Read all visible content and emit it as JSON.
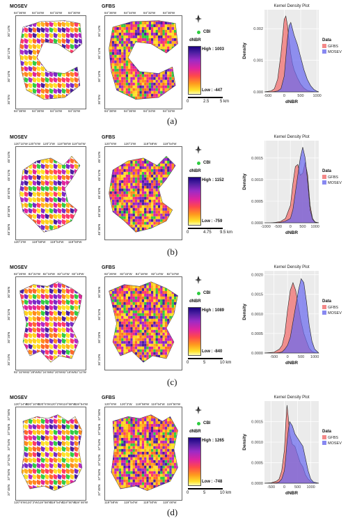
{
  "panels": [
    {
      "caption": "(a)",
      "map_left_title": "MOSEV",
      "map_right_title": "GFBS",
      "left_lon_ticks_bottom": [
        "84°38'W",
        "84°36'W",
        "84°34'W",
        "84°32'W"
      ],
      "left_lon_ticks_top": [
        "84°36'W",
        "84°34'W",
        "84°32'W",
        "84°30'W"
      ],
      "left_lat_ticks_left": [
        "30°14'N",
        "30°12'N",
        "30°10'N",
        "30°8'N"
      ],
      "right_lon_ticks_bottom": [
        "84°38'W",
        "84°36'W",
        "84°34'W",
        "84°32'W"
      ],
      "right_lon_ticks_top": [
        "84°36'W",
        "84°34'W",
        "84°32'W",
        "84°30'W"
      ],
      "right_lat_ticks_left": [
        "30°14'N",
        "30°12'N",
        "30°10'N",
        "30°8'N"
      ],
      "legend": {
        "cbi": "CBI",
        "dnbr": "dNBR",
        "high": "High : 1003",
        "low": "Low : -447",
        "scale": [
          "0",
          "2.5",
          "5 km"
        ]
      },
      "kde": {
        "title": "Kernel Density Plot",
        "xlabel": "dNBR",
        "ylabel": "Density",
        "legend_title": "Data",
        "legend_items": [
          "GFBS",
          "MOSEV"
        ],
        "xticks": [
          "-500",
          "0",
          "500",
          "1000"
        ],
        "yticks": [
          "0.000",
          "0.001",
          "0.002"
        ]
      }
    },
    {
      "caption": "(b)",
      "map_left_title": "MOSEV",
      "map_right_title": "GFBS",
      "left_lon_ticks_top": [
        "120°10'W",
        "120°6'W",
        "120°2'W",
        "119°58'W",
        "119°54'W"
      ],
      "left_lon_ticks_bottom": [
        "120°2'W",
        "119°58'W",
        "119°54'W",
        "119°50'W"
      ],
      "left_lat_ticks_left": [
        "48°44'N",
        "48°42'N",
        "48°40'N",
        "48°38'N",
        "48°36'N"
      ],
      "right_lon_ticks_top": [
        "120°6'W",
        "120°2'W",
        "119°58'W",
        "119°54'W"
      ],
      "right_lon_ticks_bottom": [],
      "right_lat_ticks_left": [
        "48°44'N",
        "48°42'N",
        "48°40'N",
        "48°38'N",
        "48°36'N"
      ],
      "legend": {
        "cbi": "CBI",
        "dnbr": "dNBR",
        "high": "High : 1152",
        "low": "Low : -759",
        "scale": [
          "0",
          "4.75",
          "9.5 km"
        ]
      },
      "kde": {
        "title": "Kernel Density Plot",
        "xlabel": "dNBR",
        "ylabel": "Density",
        "legend_title": "Data",
        "legend_items": [
          "GFBS",
          "MOSEV"
        ],
        "xticks": [
          "-1000",
          "-500",
          "0",
          "500",
          "1000"
        ],
        "yticks": [
          "0.0000",
          "0.0005",
          "0.0010",
          "0.0015"
        ]
      }
    },
    {
      "caption": "(c)",
      "map_left_title": "MOSEV",
      "map_right_title": "GFBS",
      "left_lon_ticks_top": [
        "82°26'W",
        "82°22'W",
        "82°18'W",
        "82°14'W",
        "82°10'W"
      ],
      "left_lon_ticks_bottom": [
        "82°32'W",
        "82°28'W",
        "82°24'W",
        "82°20'W",
        "82°16'W",
        "82°12'W"
      ],
      "left_lat_ticks_left": [
        "30°36'N",
        "30°32'N",
        "30°28'N",
        "30°24'N"
      ],
      "right_lon_ticks_top": [
        "82°26'W",
        "82°22'W",
        "82°18'W",
        "82°14'W",
        "82°10'W"
      ],
      "right_lon_ticks_bottom": [],
      "right_lat_ticks_left": [
        "30°36'N",
        "30°32'N",
        "30°28'N",
        "30°24'N"
      ],
      "legend": {
        "cbi": "CBI",
        "dnbr": "dNBR",
        "high": "High : 1089",
        "low": "Low : -840",
        "scale": [
          "0",
          "5",
          "10 km"
        ]
      },
      "kde": {
        "title": "Kernel Density Plot",
        "xlabel": "dNBR",
        "ylabel": "Density",
        "legend_title": "Data",
        "legend_items": [
          "GFBS",
          "MOSEV"
        ],
        "xticks": [
          "-500",
          "0",
          "500",
          "1000"
        ],
        "yticks": [
          "0.0000",
          "0.0005",
          "0.0010",
          "0.0015",
          "0.0020"
        ]
      }
    },
    {
      "caption": "(d)",
      "map_left_title": "MOSEV",
      "map_right_title": "GFBS",
      "left_lon_ticks_top": [
        "120°14'W",
        "120°10'W",
        "120°6'W",
        "120°2'W",
        "119°58'W",
        "119°54'W"
      ],
      "left_lon_ticks_bottom": [
        "120°6'W",
        "120°2'W",
        "119°58'W",
        "119°54'W",
        "119°50'W",
        "119°46'W"
      ],
      "left_lat_ticks_left": [
        "37°58'N",
        "37°56'N",
        "37°54'N",
        "37°52'N",
        "37°50'N",
        "37°48'N"
      ],
      "right_lon_ticks_top": [
        "120°6'W",
        "120°2'W",
        "119°58'W",
        "119°54'W",
        "119°50'W"
      ],
      "right_lon_ticks_bottom": [
        "119°58'W",
        "119°54'W",
        "119°50'W",
        "119°46'W"
      ],
      "right_lat_ticks_left": [
        "37°58'N",
        "37°56'N",
        "37°54'N",
        "37°52'N",
        "37°50'N",
        "37°48'N"
      ],
      "legend": {
        "cbi": "CBI",
        "dnbr": "dNBR",
        "high": "High : 1265",
        "low": "Low : -748",
        "scale": [
          "0",
          "5",
          "10 km"
        ]
      },
      "kde": {
        "title": "Kernel Density Plot",
        "xlabel": "dNBR",
        "ylabel": "Density",
        "legend_title": "Data",
        "legend_items": [
          "GFBS",
          "MOSEV"
        ],
        "xticks": [
          "-500",
          "0",
          "500",
          "1000"
        ],
        "yticks": [
          "0.0000",
          "0.0005",
          "0.0010",
          "0.0015"
        ]
      }
    }
  ],
  "colors": {
    "gfbs": "#f06a6a",
    "mosev": "#6a6aee",
    "overlap": "#6b2d8a",
    "panel_bg": "#ebebeb",
    "grid": "#ffffff",
    "cbi": "#2ecc40"
  },
  "chart_data": [
    {
      "type": "area",
      "title": "Kernel Density Plot",
      "xlabel": "dNBR",
      "ylabel": "Density",
      "xlim": [
        -600,
        1050
      ],
      "ylim": [
        0,
        0.0026
      ],
      "grid": true,
      "legend_placement": "right",
      "x": [
        -600,
        -400,
        -300,
        -200,
        -100,
        0,
        50,
        100,
        150,
        200,
        250,
        300,
        400,
        500,
        600,
        700,
        800,
        900,
        1000,
        1050
      ],
      "series": [
        {
          "name": "GFBS",
          "values": [
            0,
            3e-05,
            0.0001,
            0.0004,
            0.0012,
            0.0023,
            0.0024,
            0.0021,
            0.0016,
            0.0012,
            0.0009,
            0.0007,
            0.00045,
            0.00025,
            0.00012,
            5e-05,
            2e-05,
            1e-05,
            0,
            0
          ]
        },
        {
          "name": "MOSEV",
          "values": [
            0,
            0,
            1e-05,
            3e-05,
            0.0001,
            0.0005,
            0.0011,
            0.0017,
            0.0021,
            0.0022,
            0.002,
            0.0018,
            0.0015,
            0.0011,
            0.0007,
            0.0004,
            0.0002,
            8e-05,
            2e-05,
            0
          ]
        }
      ]
    },
    {
      "type": "area",
      "title": "Kernel Density Plot",
      "xlabel": "dNBR",
      "ylabel": "Density",
      "xlim": [
        -1050,
        1150
      ],
      "ylim": [
        0,
        0.0019
      ],
      "grid": true,
      "legend_placement": "right",
      "x": [
        -1050,
        -800,
        -600,
        -400,
        -200,
        0,
        100,
        200,
        300,
        400,
        500,
        600,
        700,
        800,
        900,
        1000,
        1150
      ],
      "series": [
        {
          "name": "GFBS",
          "values": [
            0,
            0,
            1e-05,
            3e-05,
            0.0001,
            0.0004,
            0.0009,
            0.0013,
            0.00135,
            0.0011,
            0.00115,
            0.0014,
            0.0011,
            0.0004,
            0.0001,
            2e-05,
            0
          ]
        },
        {
          "name": "MOSEV",
          "values": [
            0,
            0,
            0,
            1e-05,
            4e-05,
            0.0001,
            0.0003,
            0.0007,
            0.0011,
            0.0015,
            0.00175,
            0.0015,
            0.00095,
            0.0003,
            8e-05,
            1e-05,
            0
          ]
        }
      ]
    },
    {
      "type": "area",
      "title": "Kernel Density Plot",
      "xlabel": "dNBR",
      "ylabel": "Density",
      "xlim": [
        -850,
        1150
      ],
      "ylim": [
        0,
        0.0021
      ],
      "grid": true,
      "legend_placement": "right",
      "x": [
        -850,
        -500,
        -300,
        -200,
        -100,
        0,
        100,
        200,
        300,
        400,
        500,
        600,
        700,
        800,
        900,
        1000,
        1150
      ],
      "series": [
        {
          "name": "GFBS",
          "values": [
            0,
            2e-05,
            0.0001,
            0.0002,
            0.0005,
            0.0011,
            0.0016,
            0.0018,
            0.0016,
            0.0012,
            0.0008,
            0.0005,
            0.0003,
            0.00012,
            4e-05,
            1e-05,
            0
          ]
        },
        {
          "name": "MOSEV",
          "values": [
            0,
            0,
            1e-05,
            3e-05,
            0.0001,
            0.0002,
            0.0004,
            0.0008,
            0.0012,
            0.0016,
            0.0019,
            0.0018,
            0.0013,
            0.0007,
            0.0003,
            0.0001,
            0
          ]
        }
      ]
    },
    {
      "type": "area",
      "title": "Kernel Density Plot",
      "xlabel": "dNBR",
      "ylabel": "Density",
      "xlim": [
        -750,
        1300
      ],
      "ylim": [
        0,
        0.002
      ],
      "grid": true,
      "legend_placement": "right",
      "x": [
        -750,
        -500,
        -300,
        -200,
        -100,
        0,
        50,
        100,
        150,
        200,
        300,
        400,
        500,
        600,
        700,
        800,
        900,
        1000,
        1100,
        1300
      ],
      "series": [
        {
          "name": "GFBS",
          "values": [
            0,
            1e-05,
            5e-05,
            0.0001,
            0.0003,
            0.0008,
            0.0014,
            0.0019,
            0.0016,
            0.0012,
            0.00095,
            0.0009,
            0.0007,
            0.0005,
            0.0004,
            0.0002,
            0.0001,
            4e-05,
            1e-05,
            0
          ]
        },
        {
          "name": "MOSEV",
          "values": [
            0,
            0,
            1e-05,
            3e-05,
            0.0001,
            0.0003,
            0.0006,
            0.001,
            0.0013,
            0.0015,
            0.0014,
            0.0012,
            0.0011,
            0.001,
            0.0009,
            0.0006,
            0.0003,
            0.0001,
            3e-05,
            0
          ]
        }
      ]
    }
  ]
}
